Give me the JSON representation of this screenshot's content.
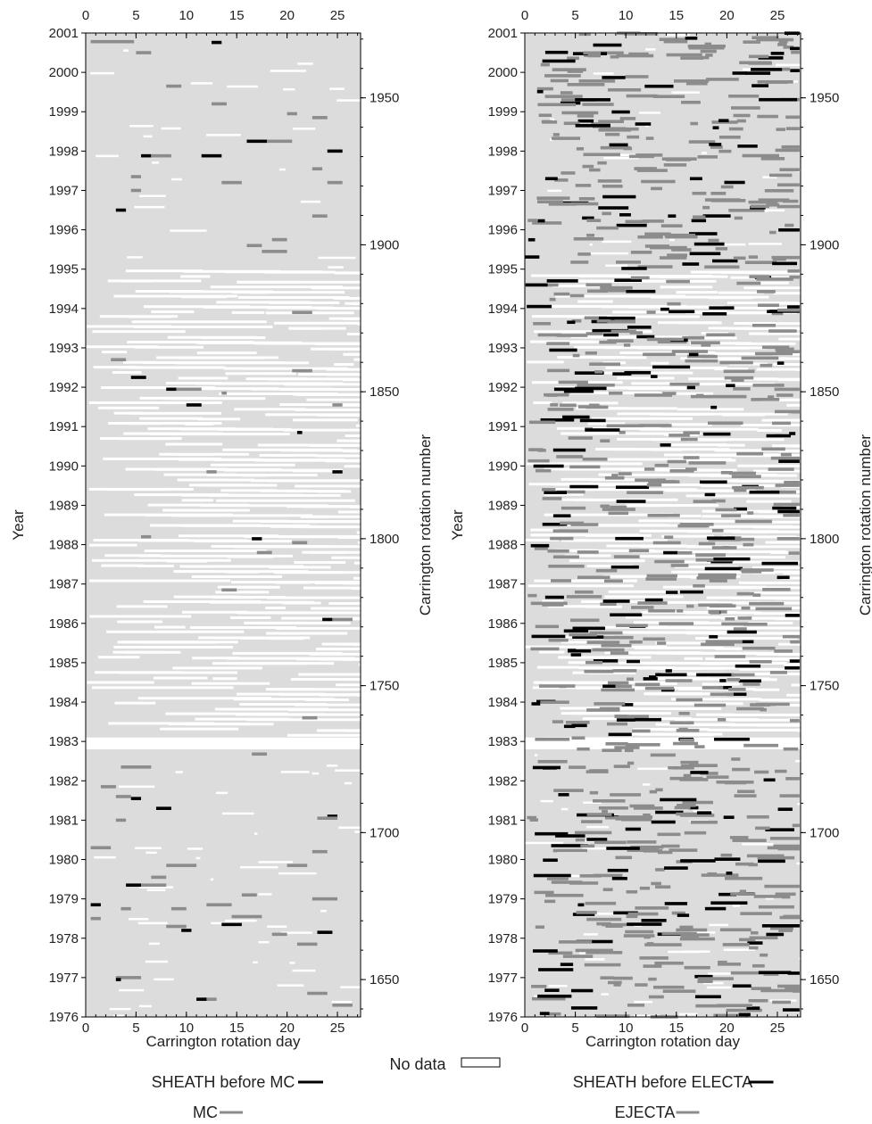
{
  "chart_data": [
    {
      "type": "heatmap",
      "panel": "left",
      "xlabel": "Carrington rotation day",
      "ylabel": "Year",
      "y2label": "Carrington rotation number",
      "xlim": [
        0,
        27.3
      ],
      "ylim": [
        1976,
        2001
      ],
      "x_ticks": [
        "0",
        "5",
        "10",
        "15",
        "20",
        "25"
      ],
      "y_ticks": [
        "1976",
        "1977",
        "1978",
        "1979",
        "1980",
        "1981",
        "1982",
        "1983",
        "1984",
        "1985",
        "1986",
        "1987",
        "1988",
        "1989",
        "1990",
        "1991",
        "1992",
        "1993",
        "1994",
        "1995",
        "1996",
        "1997",
        "1998",
        "1999",
        "2000",
        "2001"
      ],
      "y2_ticks": [
        "1650",
        "1700",
        "1750",
        "1800",
        "1850",
        "1900",
        "1950"
      ],
      "legend": [
        {
          "label": "SHEATH before MC",
          "color": "#000000"
        },
        {
          "label": "MC",
          "color": "#8c8c8c"
        }
      ],
      "events": [
        {
          "year": 2000.78,
          "start": 0.5,
          "end": 4.8,
          "kind": "mc"
        },
        {
          "year": 2000.76,
          "start": 12.5,
          "end": 13.5,
          "kind": "sheath"
        },
        {
          "year": 2000.5,
          "start": 5.0,
          "end": 6.5,
          "kind": "mc"
        },
        {
          "year": 1999.65,
          "start": 8.0,
          "end": 9.5,
          "kind": "mc"
        },
        {
          "year": 1999.2,
          "start": 12.5,
          "end": 14.0,
          "kind": "mc"
        },
        {
          "year": 1998.95,
          "start": 20.0,
          "end": 21.0,
          "kind": "mc"
        },
        {
          "year": 1998.85,
          "start": 22.5,
          "end": 24.0,
          "kind": "mc"
        },
        {
          "year": 1998.25,
          "start": 16.0,
          "end": 18.0,
          "kind": "sheath"
        },
        {
          "year": 1998.25,
          "start": 18.0,
          "end": 20.5,
          "kind": "mc"
        },
        {
          "year": 1998.0,
          "start": 24.0,
          "end": 25.5,
          "kind": "sheath"
        },
        {
          "year": 1997.88,
          "start": 5.5,
          "end": 6.5,
          "kind": "sheath"
        },
        {
          "year": 1997.88,
          "start": 6.5,
          "end": 8.5,
          "kind": "mc"
        },
        {
          "year": 1997.88,
          "start": 11.5,
          "end": 13.5,
          "kind": "sheath"
        },
        {
          "year": 1997.55,
          "start": 22.5,
          "end": 23.5,
          "kind": "mc"
        },
        {
          "year": 1997.35,
          "start": 4.5,
          "end": 5.5,
          "kind": "mc"
        },
        {
          "year": 1997.2,
          "start": 13.5,
          "end": 15.5,
          "kind": "mc"
        },
        {
          "year": 1997.2,
          "start": 24.0,
          "end": 25.5,
          "kind": "mc"
        },
        {
          "year": 1997.0,
          "start": 4.5,
          "end": 5.5,
          "kind": "mc"
        },
        {
          "year": 1996.5,
          "start": 3.0,
          "end": 4.0,
          "kind": "sheath"
        },
        {
          "year": 1996.35,
          "start": 22.5,
          "end": 24.0,
          "kind": "mc"
        },
        {
          "year": 1995.75,
          "start": 18.5,
          "end": 20.0,
          "kind": "mc"
        },
        {
          "year": 1995.6,
          "start": 16.0,
          "end": 17.5,
          "kind": "mc"
        },
        {
          "year": 1995.45,
          "start": 17.5,
          "end": 20.0,
          "kind": "mc"
        },
        {
          "year": 1993.9,
          "start": 20.5,
          "end": 22.5,
          "kind": "mc"
        },
        {
          "year": 1992.7,
          "start": 2.5,
          "end": 4.0,
          "kind": "mc"
        },
        {
          "year": 1992.42,
          "start": 20.5,
          "end": 22.5,
          "kind": "mc"
        },
        {
          "year": 1992.25,
          "start": 4.5,
          "end": 6.0,
          "kind": "sheath"
        },
        {
          "year": 1991.95,
          "start": 8.0,
          "end": 9.0,
          "kind": "sheath"
        },
        {
          "year": 1991.95,
          "start": 9.0,
          "end": 11.5,
          "kind": "mc"
        },
        {
          "year": 1991.85,
          "start": 13.5,
          "end": 14.0,
          "kind": "mc"
        },
        {
          "year": 1991.55,
          "start": 10.0,
          "end": 11.5,
          "kind": "sheath"
        },
        {
          "year": 1991.55,
          "start": 24.5,
          "end": 25.5,
          "kind": "mc"
        },
        {
          "year": 1990.85,
          "start": 21.0,
          "end": 21.5,
          "kind": "sheath"
        },
        {
          "year": 1989.85,
          "start": 12.0,
          "end": 13.0,
          "kind": "mc"
        },
        {
          "year": 1989.85,
          "start": 24.5,
          "end": 25.5,
          "kind": "sheath"
        },
        {
          "year": 1988.2,
          "start": 5.5,
          "end": 6.5,
          "kind": "mc"
        },
        {
          "year": 1988.15,
          "start": 16.5,
          "end": 17.5,
          "kind": "sheath"
        },
        {
          "year": 1988.05,
          "start": 20.5,
          "end": 22.0,
          "kind": "mc"
        },
        {
          "year": 1987.8,
          "start": 17.0,
          "end": 18.5,
          "kind": "mc"
        },
        {
          "year": 1986.85,
          "start": 13.5,
          "end": 15.0,
          "kind": "mc"
        },
        {
          "year": 1986.1,
          "start": 23.5,
          "end": 24.5,
          "kind": "sheath"
        },
        {
          "year": 1986.1,
          "start": 24.5,
          "end": 26.5,
          "kind": "mc"
        },
        {
          "year": 1983.6,
          "start": 21.5,
          "end": 23.0,
          "kind": "mc"
        },
        {
          "year": 1982.68,
          "start": 16.5,
          "end": 18.0,
          "kind": "mc"
        },
        {
          "year": 1982.35,
          "start": 3.5,
          "end": 6.5,
          "kind": "mc"
        },
        {
          "year": 1981.85,
          "start": 1.5,
          "end": 3.0,
          "kind": "mc"
        },
        {
          "year": 1981.6,
          "start": 3.0,
          "end": 4.5,
          "kind": "mc"
        },
        {
          "year": 1981.55,
          "start": 4.5,
          "end": 5.5,
          "kind": "sheath"
        },
        {
          "year": 1981.3,
          "start": 7.0,
          "end": 8.5,
          "kind": "sheath"
        },
        {
          "year": 1981.1,
          "start": 24.0,
          "end": 25.0,
          "kind": "sheath"
        },
        {
          "year": 1981.05,
          "start": 23.0,
          "end": 25.0,
          "kind": "mc"
        },
        {
          "year": 1981.0,
          "start": 3.0,
          "end": 4.0,
          "kind": "mc"
        },
        {
          "year": 1980.3,
          "start": 0.5,
          "end": 2.5,
          "kind": "mc"
        },
        {
          "year": 1980.2,
          "start": 22.5,
          "end": 24.0,
          "kind": "mc"
        },
        {
          "year": 1979.85,
          "start": 8.0,
          "end": 11.0,
          "kind": "mc"
        },
        {
          "year": 1979.85,
          "start": 20.0,
          "end": 22.0,
          "kind": "mc"
        },
        {
          "year": 1979.55,
          "start": 6.5,
          "end": 8.0,
          "kind": "mc"
        },
        {
          "year": 1979.35,
          "start": 4.0,
          "end": 5.5,
          "kind": "sheath"
        },
        {
          "year": 1979.35,
          "start": 5.5,
          "end": 8.0,
          "kind": "mc"
        },
        {
          "year": 1979.1,
          "start": 15.5,
          "end": 17.0,
          "kind": "mc"
        },
        {
          "year": 1979.0,
          "start": 22.5,
          "end": 25.0,
          "kind": "mc"
        },
        {
          "year": 1978.85,
          "start": 0.5,
          "end": 1.5,
          "kind": "sheath"
        },
        {
          "year": 1978.85,
          "start": 12.0,
          "end": 14.5,
          "kind": "mc"
        },
        {
          "year": 1978.75,
          "start": 3.5,
          "end": 4.5,
          "kind": "mc"
        },
        {
          "year": 1978.75,
          "start": 8.5,
          "end": 10.0,
          "kind": "mc"
        },
        {
          "year": 1978.55,
          "start": 14.5,
          "end": 17.5,
          "kind": "mc"
        },
        {
          "year": 1978.5,
          "start": 0.5,
          "end": 1.5,
          "kind": "mc"
        },
        {
          "year": 1978.35,
          "start": 13.5,
          "end": 15.5,
          "kind": "sheath"
        },
        {
          "year": 1978.3,
          "start": 8.0,
          "end": 10.0,
          "kind": "mc"
        },
        {
          "year": 1978.2,
          "start": 9.5,
          "end": 10.5,
          "kind": "sheath"
        },
        {
          "year": 1978.15,
          "start": 23.0,
          "end": 24.5,
          "kind": "sheath"
        },
        {
          "year": 1978.1,
          "start": 18.5,
          "end": 20.0,
          "kind": "mc"
        },
        {
          "year": 1977.85,
          "start": 21.0,
          "end": 23.0,
          "kind": "mc"
        },
        {
          "year": 1977.0,
          "start": 3.0,
          "end": 5.5,
          "kind": "mc"
        },
        {
          "year": 1976.95,
          "start": 3.0,
          "end": 3.5,
          "kind": "sheath"
        },
        {
          "year": 1976.6,
          "start": 22.0,
          "end": 24.0,
          "kind": "mc"
        },
        {
          "year": 1976.45,
          "start": 11.5,
          "end": 13.0,
          "kind": "mc"
        },
        {
          "year": 1976.45,
          "start": 11.0,
          "end": 12.0,
          "kind": "sheath"
        },
        {
          "year": 1976.3,
          "start": 24.5,
          "end": 26.5,
          "kind": "mc"
        }
      ]
    },
    {
      "type": "heatmap",
      "panel": "right",
      "xlabel": "Carrington rotation day",
      "ylabel": "Year",
      "y2label": "Carrington rotation number",
      "xlim": [
        0,
        27.3
      ],
      "ylim": [
        1976,
        2001
      ],
      "x_ticks": [
        "0",
        "5",
        "10",
        "15",
        "20",
        "25"
      ],
      "y_ticks": [
        "1976",
        "1977",
        "1978",
        "1979",
        "1980",
        "1981",
        "1982",
        "1983",
        "1984",
        "1985",
        "1986",
        "1987",
        "1988",
        "1989",
        "1990",
        "1991",
        "1992",
        "1993",
        "1994",
        "1995",
        "1996",
        "1997",
        "1998",
        "1999",
        "2000",
        "2001"
      ],
      "y2_ticks": [
        "1650",
        "1700",
        "1750",
        "1800",
        "1850",
        "1900",
        "1950"
      ],
      "legend": [
        {
          "label": "SHEATH before ELECTA",
          "color": "#000000"
        },
        {
          "label": "EJECTA",
          "color": "#8c8c8c"
        }
      ],
      "events": "dense field of black (sheath) and gray (ejecta) segments across all rotations"
    }
  ],
  "colors": {
    "no_data": "#ffffff",
    "background": "#dcdcdc",
    "sheath": "#000000",
    "ejecta": "#8c8c8c"
  },
  "legend_no_data": "No data"
}
